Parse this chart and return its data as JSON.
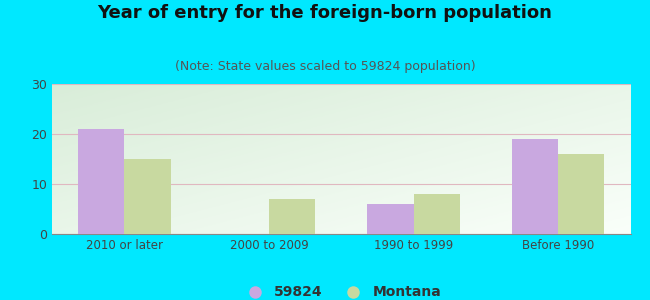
{
  "title": "Year of entry for the foreign-born population",
  "subtitle": "(Note: State values scaled to 59824 population)",
  "categories": [
    "2010 or later",
    "2000 to 2009",
    "1990 to 1999",
    "Before 1990"
  ],
  "values_59824": [
    21,
    0,
    6,
    19
  ],
  "values_montana": [
    15,
    7,
    8,
    16
  ],
  "bar_color_59824": "#c9a8e0",
  "bar_color_montana": "#c8d9a0",
  "background_outer": "#00e8ff",
  "background_inner_topleft": "#d8edd8",
  "background_inner_white": "#f5fff5",
  "ylim": [
    0,
    30
  ],
  "yticks": [
    0,
    10,
    20,
    30
  ],
  "grid_color": "#e0b8c0",
  "legend_label_1": "59824",
  "legend_label_2": "Montana",
  "title_fontsize": 13,
  "subtitle_fontsize": 9,
  "bar_width": 0.32
}
